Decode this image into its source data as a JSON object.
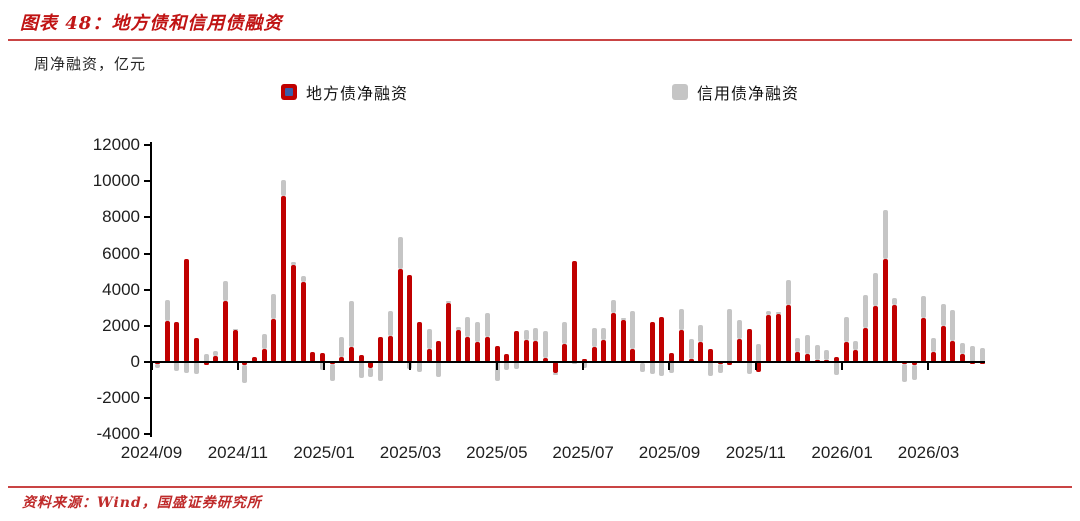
{
  "header": {
    "title": "图表 48：地方债和信用债融资"
  },
  "unit_label": "周净融资，亿元",
  "legend": {
    "items": [
      {
        "label": "地方债净融资",
        "color": "#c00000",
        "marker_inner": "#3a5ca8"
      },
      {
        "label": "信用债净融资",
        "color": "#c5c5c5",
        "marker_inner": ""
      }
    ]
  },
  "source": {
    "text": "资料来源：Wind，国盛证券研究所"
  },
  "chart_data": {
    "type": "bar",
    "stacked": true,
    "title": "地方债和信用债融资",
    "ylabel": "周净融资，亿元",
    "ylim": [
      -4000,
      12000
    ],
    "ytick_interval": 2000,
    "y_tick_labels": [
      "-4000",
      "-2000",
      "0",
      "2000",
      "4000",
      "6000",
      "8000",
      "10000",
      "12000"
    ],
    "x_tick_labels": [
      "2024/09",
      "2024/11",
      "2025/01",
      "2025/03",
      "2025/05",
      "2025/07",
      "2025/09",
      "2025/11",
      "2026/01",
      "2026/03"
    ],
    "x_unit": "week",
    "grid": false,
    "legend_position": "top",
    "series": [
      {
        "name": "地方债净融资",
        "color": "#c00000",
        "values": [
          -100,
          2250,
          2200,
          5700,
          1300,
          -150,
          350,
          3350,
          1750,
          -150,
          300,
          700,
          2400,
          9200,
          5350,
          4450,
          550,
          480,
          -100,
          260,
          850,
          400,
          -350,
          1400,
          1450,
          5150,
          4800,
          2200,
          700,
          1160,
          3250,
          1750,
          1400,
          1100,
          1400,
          900,
          440,
          1730,
          1220,
          1140,
          220,
          -620,
          1000,
          5600,
          170,
          810,
          1220,
          2700,
          2300,
          740,
          -80,
          2210,
          2510,
          480,
          1770,
          150,
          1110,
          700,
          -100,
          -150,
          1250,
          1850,
          -570,
          2600,
          2650,
          3150,
          550,
          450,
          130,
          100,
          300,
          1100,
          680,
          1900,
          3100,
          5700,
          3150,
          -100,
          -150,
          2450,
          550,
          2000,
          1150,
          420,
          -100,
          -100
        ]
      },
      {
        "name": "信用债净融资",
        "color": "#c5c5c5",
        "values": [
          -250,
          1200,
          -500,
          -600,
          -650,
          450,
          250,
          1150,
          100,
          -1000,
          0,
          850,
          1350,
          850,
          200,
          300,
          0,
          -450,
          -950,
          1150,
          2500,
          -900,
          -480,
          -1030,
          1350,
          1750,
          -370,
          -550,
          1150,
          -830,
          100,
          200,
          1100,
          1100,
          1300,
          -1030,
          -440,
          -390,
          550,
          740,
          1510,
          -100,
          1200,
          -100,
          -330,
          1070,
          640,
          740,
          150,
          2080,
          -470,
          -680,
          -770,
          -590,
          1180,
          1140,
          920,
          -800,
          -500,
          2950,
          1100,
          -650,
          1000,
          200,
          100,
          1400,
          800,
          1050,
          830,
          550,
          -700,
          1400,
          500,
          1800,
          1800,
          2700,
          400,
          -980,
          -820,
          1200,
          780,
          1200,
          1700,
          650,
          900,
          800
        ]
      }
    ]
  }
}
